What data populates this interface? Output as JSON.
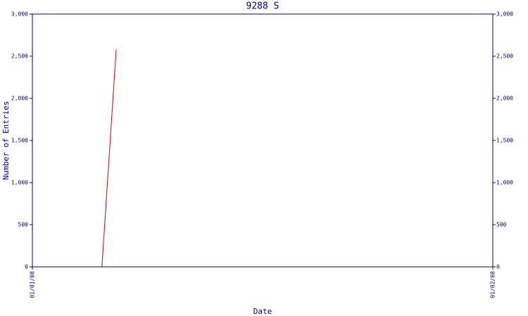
{
  "chart_data": {
    "type": "line",
    "title": "9288 S",
    "x_label": "Date",
    "y_label": "Number of Entries",
    "x": [
      0.151,
      0.182
    ],
    "values": [
      0,
      2580
    ],
    "color": "#cc0000",
    "xlim": [
      0,
      1
    ],
    "xticks": [
      {
        "value": 0,
        "label": "01/01/08"
      },
      {
        "value": 1,
        "label": "01/02/08"
      }
    ],
    "ylim": [
      0,
      3000
    ],
    "yticks": [
      0,
      500,
      {
        "value": 1000,
        "label": "1,000"
      },
      {
        "value": 1500,
        "label": "1,500"
      },
      {
        "value": 2000,
        "label": "2,000"
      },
      {
        "value": 2500,
        "label": "2,500"
      },
      {
        "value": 3000,
        "label": "3,000"
      }
    ],
    "y2lim": [
      0,
      3000
    ],
    "y2ticks": [
      0,
      500,
      {
        "value": 1000,
        "label": "1,000"
      },
      {
        "value": 1500,
        "label": "1,500"
      },
      {
        "value": 2000,
        "label": "2,000"
      },
      {
        "value": 2500,
        "label": "2,500"
      },
      {
        "value": 3000,
        "label": "3,000"
      }
    ],
    "grid": false
  }
}
